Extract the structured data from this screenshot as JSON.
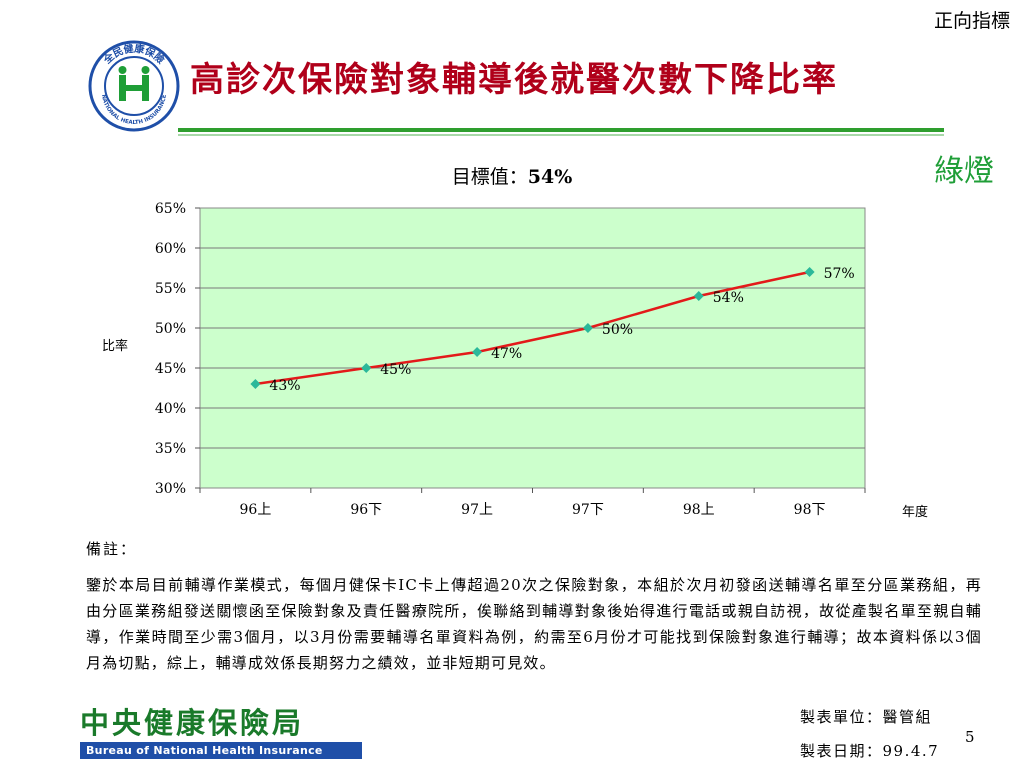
{
  "header": {
    "top_tag": "正向指標",
    "title": "高診次保險對象輔導後就醫次數下降比率",
    "light": "綠燈",
    "logo_text": "全民健康保險",
    "logo_text_en": "NATIONAL HEALTH INSURANCE"
  },
  "target": {
    "label": "目標值：",
    "value": "54%"
  },
  "colors": {
    "title": "#b0001a",
    "accent_green": "#2e9e2e",
    "plot_bg": "#ccffcc",
    "line": "#e31a1a",
    "marker": "#2bb89a"
  },
  "chart_data": {
    "type": "line",
    "categories": [
      "96上",
      "96下",
      "97上",
      "97下",
      "98上",
      "98下"
    ],
    "series": [
      {
        "values": [
          43,
          45,
          47,
          50,
          54,
          57
        ],
        "labels": [
          "43%",
          "45%",
          "47%",
          "50%",
          "54%",
          "57%"
        ]
      }
    ],
    "yticks": [
      "30%",
      "35%",
      "40%",
      "45%",
      "50%",
      "55%",
      "60%",
      "65%"
    ],
    "ylim": [
      30,
      65
    ],
    "ylabel": "比率",
    "xlabel": "年度",
    "grid": true
  },
  "notes": {
    "title": "備註：",
    "body": "鑒於本局目前輔導作業模式，每個月健保卡IC卡上傳超過20次之保險對象，本組於次月初發函送輔導名單至分區業務組，再由分區業務組發送關懷函至保險對象及責任醫療院所，俟聯絡到輔導對象後始得進行電話或親自訪視，故從產製名單至親自輔導，作業時間至少需3個月，以3月份需要輔導名單資料為例，約需至6月份才可能找到保險對象進行輔導；故本資料係以3個月為切點，綜上，輔導成效係長期努力之績效，並非短期可見效。"
  },
  "footer": {
    "org_cn": "中央健康保險局",
    "org_en": "Bureau of National Health Insurance",
    "maker": "製表單位：醫管組",
    "date": "製表日期：99.4.7",
    "page": "5"
  }
}
